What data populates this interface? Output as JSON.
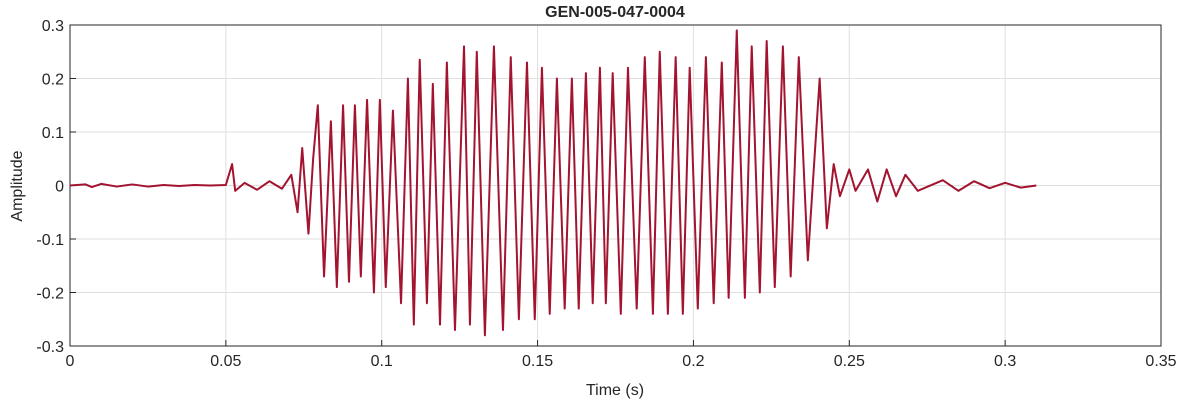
{
  "chart_data": {
    "type": "line",
    "title": "GEN-005-047-0004",
    "xlabel": "Time (s)",
    "ylabel": "Amplitude",
    "color": "#a2142f",
    "grid": true,
    "xlim": [
      0,
      0.35
    ],
    "ylim": [
      -0.3,
      0.3
    ],
    "xticks": [
      0,
      0.05,
      0.1,
      0.15,
      0.2,
      0.25,
      0.3,
      0.35
    ],
    "yticks": [
      -0.3,
      -0.2,
      -0.1,
      0,
      0.1,
      0.2,
      0.3
    ],
    "x": [
      0,
      0.005,
      0.007,
      0.01,
      0.015,
      0.02,
      0.025,
      0.03,
      0.035,
      0.04,
      0.045,
      0.05,
      0.052,
      0.053,
      0.056,
      0.06,
      0.064,
      0.068,
      0.071,
      0.073,
      0.0745,
      0.0765,
      0.078,
      0.0795,
      0.0815,
      0.0837,
      0.0856,
      0.0876,
      0.0895,
      0.0914,
      0.0933,
      0.0953,
      0.0975,
      0.0994,
      0.1013,
      0.1036,
      0.1062,
      0.1084,
      0.1103,
      0.1122,
      0.1145,
      0.1164,
      0.1187,
      0.1209,
      0.1235,
      0.1264,
      0.1283,
      0.1305,
      0.1331,
      0.136,
      0.1389,
      0.1414,
      0.144,
      0.1466,
      0.1491,
      0.1514,
      0.1539,
      0.1562,
      0.1587,
      0.161,
      0.1632,
      0.1655,
      0.1677,
      0.17,
      0.1719,
      0.1741,
      0.1767,
      0.179,
      0.1818,
      0.1844,
      0.187,
      0.1892,
      0.1918,
      0.1943,
      0.1966,
      0.1988,
      0.2014,
      0.204,
      0.2065,
      0.2091,
      0.2113,
      0.2139,
      0.2165,
      0.2187,
      0.2213,
      0.2235,
      0.2261,
      0.2287,
      0.2312,
      0.2338,
      0.2367,
      0.2405,
      0.2428,
      0.245,
      0.247,
      0.25,
      0.252,
      0.256,
      0.259,
      0.262,
      0.265,
      0.268,
      0.272,
      0.28,
      0.285,
      0.29,
      0.295,
      0.3,
      0.305,
      0.31
    ],
    "values": [
      0,
      0.002,
      -0.003,
      0.003,
      -0.002,
      0.002,
      -0.002,
      0.001,
      -0.001,
      0.001,
      0,
      0.001,
      0.04,
      -0.01,
      0.005,
      -0.008,
      0.008,
      -0.006,
      0.02,
      -0.05,
      0.07,
      -0.09,
      0.05,
      0.15,
      -0.17,
      0.12,
      -0.19,
      0.15,
      -0.18,
      0.15,
      -0.17,
      0.16,
      -0.2,
      0.16,
      -0.19,
      0.14,
      -0.22,
      0.2,
      -0.26,
      0.235,
      -0.22,
      0.19,
      -0.26,
      0.23,
      -0.27,
      0.26,
      -0.26,
      0.25,
      -0.28,
      0.26,
      -0.27,
      0.24,
      -0.25,
      0.23,
      -0.25,
      0.22,
      -0.24,
      0.2,
      -0.23,
      0.2,
      -0.23,
      0.21,
      -0.22,
      0.22,
      -0.22,
      0.21,
      -0.24,
      0.22,
      -0.23,
      0.24,
      -0.24,
      0.25,
      -0.24,
      0.24,
      -0.24,
      0.22,
      -0.23,
      0.24,
      -0.22,
      0.23,
      -0.21,
      0.29,
      -0.21,
      0.26,
      -0.2,
      0.27,
      -0.19,
      0.26,
      -0.17,
      0.24,
      -0.14,
      0.2,
      -0.08,
      0.04,
      -0.02,
      0.03,
      -0.01,
      0.03,
      -0.03,
      0.03,
      -0.02,
      0.02,
      -0.01,
      0.01,
      -0.01,
      0.008,
      -0.005,
      0.005,
      -0.004,
      0
    ]
  }
}
